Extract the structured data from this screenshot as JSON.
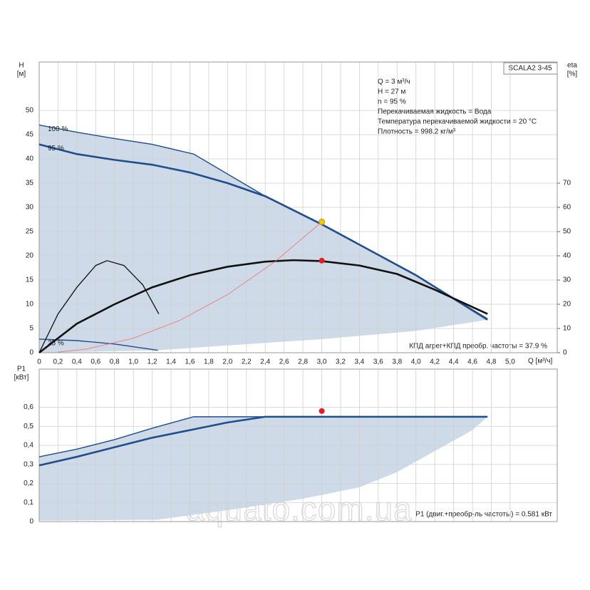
{
  "watermark": "aquato.com.ua",
  "chart_data": [
    {
      "type": "line",
      "ylabel": "H",
      "yunit": "[м]",
      "y2label": "eta",
      "y2unit": "[%]",
      "xlabel": "Q [м³/ч]",
      "model": "SCALA2 3-45",
      "info": [
        "Q = 3 м³/ч",
        "H = 27 м",
        "n = 95 %",
        "Перекачиваемая жидкость = Вода",
        "Температура перекачиваемой жидкости = 20 °C",
        "Плотность = 998.2 кг/м³"
      ],
      "note": "КПД агрег+КПД преобр. частоты = 37.9 %",
      "xlim": [
        0,
        5.5
      ],
      "xticks": [
        0,
        {
          "value": 0.2,
          "label": "0,2"
        },
        {
          "value": 0.4,
          "label": "0,4"
        },
        {
          "value": 0.6,
          "label": "0,6"
        },
        {
          "value": 0.8,
          "label": "0,8"
        },
        {
          "value": 1.0,
          "label": "1,0"
        },
        {
          "value": 1.2,
          "label": "1,2"
        },
        {
          "value": 1.4,
          "label": "1,4"
        },
        {
          "value": 1.6,
          "label": "1,6"
        },
        {
          "value": 1.8,
          "label": "1,8"
        },
        {
          "value": 2.0,
          "label": "2,0"
        },
        {
          "value": 2.2,
          "label": "2,2"
        },
        {
          "value": 2.4,
          "label": "2,4"
        },
        {
          "value": 2.6,
          "label": "2,6"
        },
        {
          "value": 2.8,
          "label": "2,8"
        },
        {
          "value": 3.0,
          "label": "3,0"
        },
        {
          "value": 3.2,
          "label": "3,2"
        },
        {
          "value": 3.4,
          "label": "3,4"
        },
        {
          "value": 3.6,
          "label": "3,6"
        },
        {
          "value": 3.8,
          "label": "3,8"
        },
        {
          "value": 4.0,
          "label": "4,0"
        },
        {
          "value": 4.2,
          "label": "4,2"
        },
        {
          "value": 4.4,
          "label": "4,4"
        },
        {
          "value": 4.6,
          "label": "4,6"
        },
        {
          "value": 4.8,
          "label": "4,8"
        },
        {
          "value": 5.0,
          "label": "5,0"
        }
      ],
      "ylim": [
        0,
        60
      ],
      "yticks": [
        0,
        5,
        10,
        15,
        20,
        25,
        30,
        35,
        40,
        45,
        50
      ],
      "y2lim": [
        0,
        120
      ],
      "y2ticks": [
        0,
        10,
        20,
        30,
        40,
        50,
        60,
        70
      ],
      "grid": true,
      "band": {
        "color": "#c5d3e3",
        "x": [
          0,
          1.26,
          2,
          3,
          4,
          4.76
        ],
        "lower": [
          0,
          0.5,
          1.5,
          2.8,
          4.5,
          6.8
        ]
      },
      "series": [
        {
          "name": "100 %",
          "color": "#1f4e8c",
          "x": [
            0,
            0.4,
            0.8,
            1.2,
            1.64,
            2.4,
            3.0,
            4.0,
            4.76
          ],
          "values": [
            47,
            45.5,
            44.2,
            43,
            41,
            32.3,
            26.5,
            16,
            7
          ]
        },
        {
          "name": "95 %",
          "color": "#1f4e8c",
          "x": [
            0,
            0.4,
            0.8,
            1.2,
            1.6,
            2.0,
            2.4,
            3.0,
            4.0,
            4.76
          ],
          "values": [
            43,
            41,
            39.8,
            38.8,
            37.2,
            35,
            32.3,
            26.5,
            16,
            6.8
          ]
        },
        {
          "name": "25 %",
          "color": "#1f4e8c",
          "x": [
            0,
            0.4,
            0.8,
            1.26
          ],
          "values": [
            2.8,
            2.5,
            1.8,
            0.5
          ]
        },
        {
          "color": "#111111",
          "axis": "y2",
          "x": [
            0,
            0.4,
            0.8,
            1.2,
            1.6,
            2.0,
            2.4,
            2.7,
            3.0,
            3.4,
            3.8,
            4.2,
            4.76
          ],
          "values": [
            0,
            12,
            20,
            27,
            32,
            35.5,
            37.6,
            38.2,
            37.8,
            36,
            32.5,
            26,
            16
          ]
        },
        {
          "color": "#111111",
          "axis": "y2",
          "x": [
            0,
            0.2,
            0.4,
            0.6,
            0.72,
            0.9,
            1.1,
            1.27
          ],
          "values": [
            0,
            16,
            27,
            36,
            38,
            36,
            28,
            16
          ]
        },
        {
          "color": "#f07070",
          "x": [
            0.2,
            0.5,
            1.0,
            1.5,
            2.0,
            2.5,
            3.0
          ],
          "values": [
            0.12,
            0.75,
            3,
            6.75,
            12,
            18.75,
            27
          ]
        }
      ],
      "points": [
        {
          "x": 3,
          "y": 27,
          "color": "#f7c800"
        },
        {
          "x": 3,
          "y": 38,
          "axis": "y2",
          "color": "#e02020"
        }
      ]
    },
    {
      "type": "line",
      "ylabel": "P1",
      "yunit": "[кВт]",
      "note": "P1 (двиг.+преобр-ль частоты) = 0.581 кВт",
      "xlim": [
        0,
        5.5
      ],
      "ylim": [
        0,
        0.8
      ],
      "yticks": [
        0,
        {
          "value": 0.1,
          "label": "0,1"
        },
        {
          "value": 0.2,
          "label": "0,2"
        },
        {
          "value": 0.3,
          "label": "0,3"
        },
        {
          "value": 0.4,
          "label": "0,4"
        },
        {
          "value": 0.5,
          "label": "0,5"
        },
        {
          "value": 0.6,
          "label": "0,6"
        }
      ],
      "grid": true,
      "band": {
        "color": "#c5d3e3",
        "x": [
          0,
          1.26,
          2.0,
          2.8,
          3.4,
          3.8,
          4.2,
          4.6,
          4.76
        ],
        "lower": [
          0.005,
          0.01,
          0.06,
          0.12,
          0.18,
          0.26,
          0.37,
          0.48,
          0.55
        ]
      },
      "series": [
        {
          "color": "#1f4e8c",
          "x": [
            0,
            0.4,
            0.8,
            1.2,
            1.64,
            4.76
          ],
          "values": [
            0.34,
            0.38,
            0.43,
            0.49,
            0.55,
            0.55
          ]
        },
        {
          "color": "#1f4e8c",
          "x": [
            0,
            0.4,
            0.8,
            1.2,
            1.6,
            2.0,
            2.4,
            4.76
          ],
          "values": [
            0.295,
            0.34,
            0.39,
            0.44,
            0.48,
            0.52,
            0.55,
            0.55
          ]
        }
      ],
      "points": [
        {
          "x": 3,
          "y": 0.58,
          "color": "#e02020"
        }
      ]
    }
  ]
}
